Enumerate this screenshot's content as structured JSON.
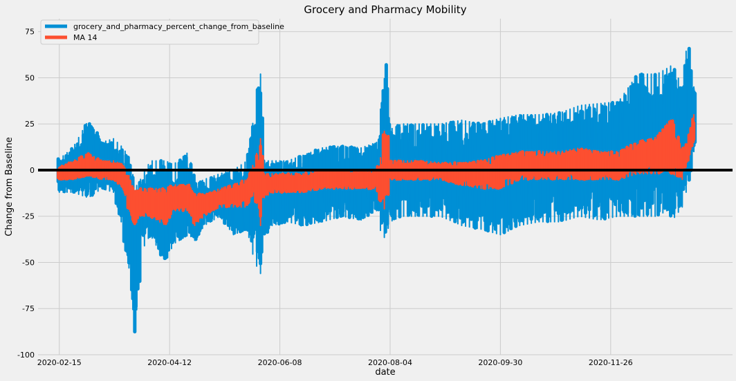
{
  "chart_data": {
    "type": "line",
    "title": "Grocery and Pharmacy Mobility",
    "xlabel": "date",
    "ylabel": "Change from Baseline",
    "x_range": [
      "2020-02-04",
      "2021-01-28"
    ],
    "x_ticks": [
      "2020-02-15",
      "2020-04-12",
      "2020-06-08",
      "2020-08-04",
      "2020-09-30",
      "2020-11-26"
    ],
    "ylim": [
      -100,
      82
    ],
    "y_ticks": [
      -100,
      -75,
      -50,
      -25,
      0,
      25,
      50,
      75
    ],
    "grid": true,
    "legend_position": "top-left",
    "reference_line": {
      "y": 0,
      "color": "#000000"
    },
    "series": [
      {
        "name": "grocery_and_pharmacy_percent_change_from_baseline",
        "color": "#008fd5",
        "style": "daily band (min/max across regions)",
        "dates": [
          "2020-02-15",
          "2020-02-22",
          "2020-03-01",
          "2020-03-08",
          "2020-03-14",
          "2020-03-19",
          "2020-03-23",
          "2020-03-25",
          "2020-03-28",
          "2020-04-02",
          "2020-04-10",
          "2020-04-14",
          "2020-04-22",
          "2020-04-25",
          "2020-04-30",
          "2020-05-08",
          "2020-05-15",
          "2020-05-22",
          "2020-05-26",
          "2020-05-29",
          "2020-05-31",
          "2020-06-04",
          "2020-06-12",
          "2020-06-20",
          "2020-06-30",
          "2020-07-10",
          "2020-07-20",
          "2020-07-28",
          "2020-07-31",
          "2020-08-02",
          "2020-08-04",
          "2020-08-10",
          "2020-08-20",
          "2020-08-30",
          "2020-09-10",
          "2020-09-20",
          "2020-09-30",
          "2020-10-10",
          "2020-10-20",
          "2020-10-31",
          "2020-11-10",
          "2020-11-20",
          "2020-11-30",
          "2020-12-10",
          "2020-12-20",
          "2020-12-25",
          "2020-12-28",
          "2021-01-02",
          "2021-01-05",
          "2021-01-08"
        ],
        "upper": [
          6,
          12,
          27,
          15,
          17,
          12,
          5,
          -10,
          -5,
          5,
          5,
          3,
          10,
          -8,
          -5,
          -2,
          0,
          5,
          32,
          52,
          5,
          5,
          5,
          8,
          12,
          13,
          12,
          15,
          42,
          57,
          22,
          25,
          25,
          25,
          27,
          25,
          28,
          30,
          30,
          31,
          35,
          36,
          37,
          52,
          52,
          55,
          57,
          45,
          74,
          45
        ],
        "lower": [
          -12,
          -12,
          -15,
          -10,
          -12,
          -32,
          -60,
          -91,
          -45,
          -35,
          -50,
          -40,
          -35,
          -38,
          -30,
          -25,
          -35,
          -32,
          -50,
          -56,
          -35,
          -30,
          -28,
          -30,
          -28,
          -25,
          -27,
          -22,
          -38,
          -35,
          -28,
          -25,
          -25,
          -25,
          -30,
          -32,
          -35,
          -30,
          -28,
          -28,
          -25,
          -27,
          -25,
          -25,
          -25,
          -22,
          -27,
          -20,
          -8,
          10
        ]
      },
      {
        "name": "MA 14",
        "color": "#fc4f30",
        "style": "moving average band",
        "dates": [
          "2020-02-15",
          "2020-02-22",
          "2020-03-01",
          "2020-03-08",
          "2020-03-14",
          "2020-03-19",
          "2020-03-23",
          "2020-03-25",
          "2020-03-28",
          "2020-04-02",
          "2020-04-10",
          "2020-04-14",
          "2020-04-22",
          "2020-04-25",
          "2020-04-30",
          "2020-05-08",
          "2020-05-15",
          "2020-05-22",
          "2020-05-26",
          "2020-05-29",
          "2020-05-31",
          "2020-06-04",
          "2020-06-12",
          "2020-06-20",
          "2020-06-30",
          "2020-07-10",
          "2020-07-20",
          "2020-07-28",
          "2020-07-31",
          "2020-08-02",
          "2020-08-04",
          "2020-08-10",
          "2020-08-20",
          "2020-08-30",
          "2020-09-10",
          "2020-09-20",
          "2020-09-30",
          "2020-10-10",
          "2020-10-20",
          "2020-10-31",
          "2020-11-10",
          "2020-11-20",
          "2020-11-30",
          "2020-12-10",
          "2020-12-20",
          "2020-12-25",
          "2020-12-28",
          "2021-01-02",
          "2021-01-05",
          "2021-01-08"
        ],
        "upper": [
          1,
          5,
          9,
          5,
          5,
          3,
          -5,
          -12,
          -10,
          -10,
          -10,
          -8,
          -8,
          -13,
          -13,
          -10,
          -8,
          -5,
          5,
          17,
          -2,
          -2,
          -2,
          -2,
          0,
          0,
          0,
          0,
          10,
          32,
          5,
          5,
          5,
          4,
          4,
          5,
          8,
          10,
          10,
          10,
          12,
          10,
          10,
          15,
          18,
          25,
          28,
          12,
          15,
          30
        ],
        "lower": [
          -5,
          -5,
          -3,
          -5,
          -5,
          -10,
          -25,
          -30,
          -25,
          -25,
          -30,
          -22,
          -22,
          -30,
          -25,
          -20,
          -20,
          -20,
          -12,
          -30,
          -15,
          -12,
          -12,
          -12,
          -10,
          -10,
          -10,
          -10,
          -20,
          -22,
          -5,
          -5,
          -5,
          -5,
          -8,
          -10,
          -10,
          -5,
          -5,
          -5,
          -5,
          -5,
          -5,
          -2,
          -2,
          0,
          -2,
          -5,
          5,
          15
        ]
      }
    ]
  }
}
